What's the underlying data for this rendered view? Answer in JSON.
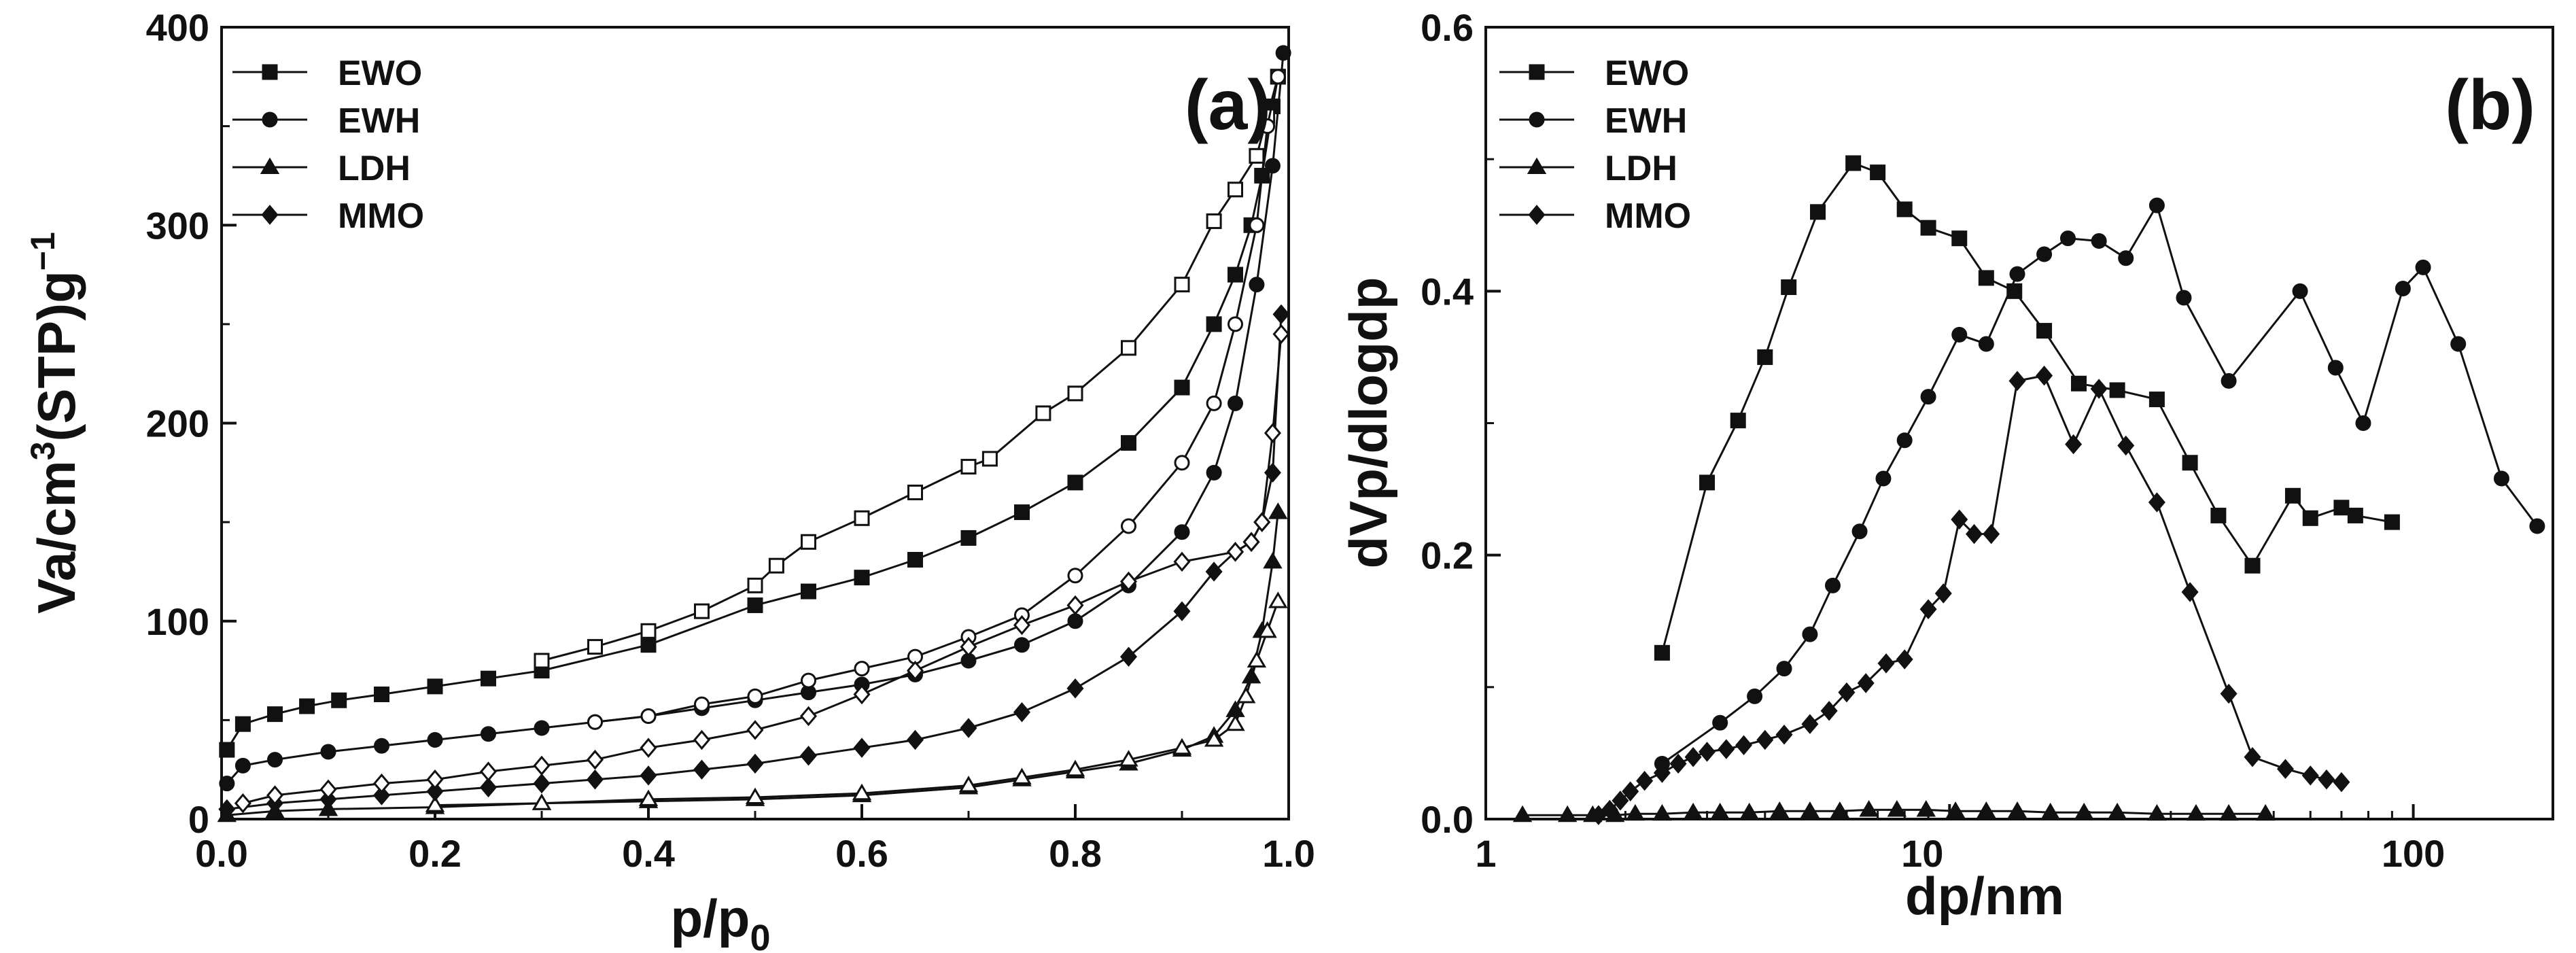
{
  "chart_data": [
    {
      "id": "a",
      "type": "scatter",
      "panel_label": "(a)",
      "xlabel_main": "p/p",
      "xlabel_sub": "0",
      "ylabel_pre": "Va/cm",
      "ylabel_sup1": "3",
      "ylabel_mid": "(STP)g",
      "ylabel_sup2": "−1",
      "xlim": [
        0,
        1
      ],
      "ylim": [
        0,
        400
      ],
      "xticks": [
        "0.0",
        "0.2",
        "0.4",
        "0.6",
        "0.8",
        "1.0"
      ],
      "xtick_values": [
        0,
        0.2,
        0.4,
        0.6,
        0.8,
        1.0
      ],
      "yticks": [
        "0",
        "100",
        "200",
        "300",
        "400"
      ],
      "ytick_values": [
        0,
        100,
        200,
        300,
        400
      ],
      "legend": [
        "EWO",
        "EWH",
        "LDH",
        "MMO"
      ],
      "series": [
        {
          "name": "EWO",
          "marker": "square",
          "fill": "filled",
          "x": [
            0.005,
            0.02,
            0.05,
            0.08,
            0.11,
            0.15,
            0.2,
            0.25,
            0.3,
            0.4,
            0.5,
            0.55,
            0.6,
            0.65,
            0.7,
            0.75,
            0.8,
            0.85,
            0.9,
            0.93,
            0.95,
            0.965,
            0.975,
            0.985,
            0.99
          ],
          "y": [
            35,
            48,
            53,
            57,
            60,
            63,
            67,
            71,
            75,
            88,
            108,
            115,
            122,
            131,
            142,
            155,
            170,
            190,
            218,
            250,
            275,
            300,
            325,
            360,
            375
          ]
        },
        {
          "name": "EWO",
          "marker": "square",
          "fill": "open",
          "x": [
            0.99,
            0.98,
            0.97,
            0.95,
            0.93,
            0.9,
            0.85,
            0.8,
            0.77,
            0.72,
            0.7,
            0.65,
            0.6,
            0.55,
            0.52,
            0.5,
            0.45,
            0.4,
            0.35,
            0.3
          ],
          "y": [
            375,
            355,
            335,
            318,
            302,
            270,
            238,
            215,
            205,
            182,
            178,
            165,
            152,
            140,
            128,
            118,
            105,
            95,
            87,
            80
          ]
        },
        {
          "name": "EWH",
          "marker": "circle",
          "fill": "filled",
          "x": [
            0.005,
            0.02,
            0.05,
            0.1,
            0.15,
            0.2,
            0.25,
            0.3,
            0.35,
            0.4,
            0.45,
            0.5,
            0.55,
            0.6,
            0.65,
            0.7,
            0.75,
            0.8,
            0.85,
            0.9,
            0.93,
            0.95,
            0.97,
            0.985,
            0.995
          ],
          "y": [
            18,
            27,
            30,
            34,
            37,
            40,
            43,
            46,
            49,
            52,
            56,
            60,
            64,
            68,
            73,
            80,
            88,
            100,
            118,
            145,
            175,
            210,
            270,
            330,
            387
          ]
        },
        {
          "name": "EWH",
          "marker": "circle",
          "fill": "open",
          "x": [
            0.99,
            0.98,
            0.97,
            0.95,
            0.93,
            0.9,
            0.85,
            0.8,
            0.75,
            0.7,
            0.65,
            0.6,
            0.55,
            0.5,
            0.45,
            0.4,
            0.35
          ],
          "y": [
            375,
            350,
            300,
            250,
            210,
            180,
            148,
            123,
            103,
            92,
            82,
            76,
            70,
            62,
            58,
            52,
            49
          ]
        },
        {
          "name": "LDH",
          "marker": "triangle",
          "fill": "filled",
          "x": [
            0.005,
            0.05,
            0.1,
            0.2,
            0.3,
            0.4,
            0.5,
            0.6,
            0.7,
            0.75,
            0.8,
            0.85,
            0.9,
            0.93,
            0.95,
            0.965,
            0.975,
            0.985,
            0.99
          ],
          "y": [
            2,
            4,
            5,
            6,
            8,
            9,
            10,
            12,
            16,
            20,
            24,
            28,
            35,
            42,
            55,
            72,
            95,
            130,
            155
          ]
        },
        {
          "name": "LDH",
          "marker": "triangle",
          "fill": "open",
          "x": [
            0.99,
            0.98,
            0.97,
            0.96,
            0.95,
            0.93,
            0.9,
            0.85,
            0.8,
            0.75,
            0.7,
            0.6,
            0.5,
            0.4,
            0.3,
            0.2
          ],
          "y": [
            110,
            95,
            80,
            62,
            48,
            40,
            36,
            30,
            25,
            21,
            17,
            13,
            11,
            10,
            8,
            7
          ]
        },
        {
          "name": "MMO",
          "marker": "diamond",
          "fill": "filled",
          "x": [
            0.005,
            0.05,
            0.1,
            0.15,
            0.2,
            0.25,
            0.3,
            0.35,
            0.4,
            0.45,
            0.5,
            0.55,
            0.6,
            0.65,
            0.7,
            0.75,
            0.8,
            0.85,
            0.9,
            0.93,
            0.95,
            0.965,
            0.975,
            0.985,
            0.993
          ],
          "y": [
            5,
            8,
            10,
            12,
            14,
            16,
            18,
            20,
            22,
            25,
            28,
            32,
            36,
            40,
            46,
            54,
            66,
            82,
            105,
            125,
            135,
            140,
            150,
            175,
            255
          ]
        },
        {
          "name": "MMO",
          "marker": "diamond",
          "fill": "open",
          "x": [
            0.993,
            0.985,
            0.975,
            0.965,
            0.95,
            0.9,
            0.85,
            0.8,
            0.75,
            0.7,
            0.65,
            0.6,
            0.55,
            0.5,
            0.45,
            0.4,
            0.35,
            0.3,
            0.25,
            0.2,
            0.15,
            0.1,
            0.05,
            0.02
          ],
          "y": [
            245,
            195,
            150,
            140,
            135,
            130,
            120,
            108,
            98,
            87,
            75,
            63,
            52,
            45,
            40,
            36,
            30,
            27,
            24,
            20,
            18,
            15,
            12,
            8
          ]
        }
      ]
    },
    {
      "id": "b",
      "type": "line",
      "panel_label": "(b)",
      "xscale": "log",
      "xlabel": "dp/nm",
      "ylabel": "dVp/dlogdp",
      "xlim": [
        1,
        200
      ],
      "ylim": [
        0,
        0.6
      ],
      "xticks": [
        "1",
        "10",
        "100"
      ],
      "xtick_values": [
        1,
        10,
        100
      ],
      "yticks": [
        "0.0",
        "0.2",
        "0.4",
        "0.6"
      ],
      "ytick_values": [
        0,
        0.2,
        0.4,
        0.6
      ],
      "legend": [
        "EWO",
        "EWH",
        "LDH",
        "MMO"
      ],
      "series": [
        {
          "name": "EWO",
          "marker": "square",
          "x": [
            2.4,
            3.0,
            3.5,
            4.0,
            4.5,
            5.2,
            6.2,
            7.0,
            8.0,
            9.0,
            10.5,
            12.0,
            13.8,
            16.0,
            19.0,
            23.0,
            28.0,
            33.0,
            38.0,
            45.0,
            55.0,
            60.0,
            70.0,
            75.0,
            90.0
          ],
          "y": [
            0.126,
            0.255,
            0.302,
            0.35,
            0.403,
            0.46,
            0.497,
            0.49,
            0.462,
            0.448,
            0.44,
            0.41,
            0.4,
            0.37,
            0.33,
            0.325,
            0.318,
            0.27,
            0.23,
            0.192,
            0.245,
            0.228,
            0.236,
            0.23,
            0.225
          ]
        },
        {
          "name": "EWH",
          "marker": "circle",
          "x": [
            2.4,
            3.2,
            3.8,
            4.4,
            5.0,
            5.6,
            6.4,
            7.2,
            8.0,
            9.0,
            10.5,
            12.0,
            14.0,
            16.0,
            18.0,
            21.0,
            24.0,
            28.0,
            32.0,
            40.0,
            57.0,
            68.0,
            78.0,
            95.0,
            105.0,
            125.0,
            155.0,
            185.0
          ],
          "y": [
            0.042,
            0.073,
            0.093,
            0.114,
            0.14,
            0.177,
            0.218,
            0.258,
            0.287,
            0.32,
            0.367,
            0.36,
            0.413,
            0.428,
            0.44,
            0.438,
            0.425,
            0.465,
            0.395,
            0.332,
            0.4,
            0.342,
            0.3,
            0.402,
            0.418,
            0.36,
            0.258,
            0.222
          ]
        },
        {
          "name": "LDH",
          "marker": "triangle",
          "x": [
            1.2,
            1.5,
            1.7,
            1.9,
            2.1,
            2.4,
            2.8,
            3.2,
            3.7,
            4.3,
            5.0,
            5.8,
            6.7,
            7.7,
            8.9,
            10.3,
            12.0,
            14.0,
            16.5,
            19.5,
            23.0,
            28.0,
            34.0,
            40.0,
            48.0
          ],
          "y": [
            0.003,
            0.003,
            0.003,
            0.003,
            0.004,
            0.004,
            0.005,
            0.005,
            0.005,
            0.006,
            0.006,
            0.006,
            0.007,
            0.007,
            0.007,
            0.006,
            0.006,
            0.006,
            0.005,
            0.005,
            0.005,
            0.004,
            0.004,
            0.004,
            0.004
          ]
        },
        {
          "name": "MMO",
          "marker": "diamond",
          "x": [
            1.75,
            1.85,
            1.95,
            2.05,
            2.2,
            2.4,
            2.6,
            2.8,
            3.0,
            3.3,
            3.6,
            4.0,
            4.4,
            5.0,
            5.5,
            6.0,
            6.6,
            7.3,
            8.0,
            9.0,
            9.7,
            10.5,
            11.3,
            12.3,
            14.0,
            16.0,
            18.5,
            21.0,
            24.0,
            28.0,
            33.0,
            40.0,
            45.0,
            53.0,
            60.0,
            65.0,
            70.0
          ],
          "y": [
            0.003,
            0.007,
            0.014,
            0.021,
            0.029,
            0.035,
            0.042,
            0.047,
            0.051,
            0.053,
            0.056,
            0.06,
            0.064,
            0.072,
            0.082,
            0.096,
            0.103,
            0.118,
            0.121,
            0.159,
            0.171,
            0.227,
            0.216,
            0.216,
            0.332,
            0.336,
            0.284,
            0.326,
            0.283,
            0.24,
            0.172,
            0.095,
            0.047,
            0.038,
            0.033,
            0.03,
            0.028
          ]
        }
      ]
    }
  ]
}
